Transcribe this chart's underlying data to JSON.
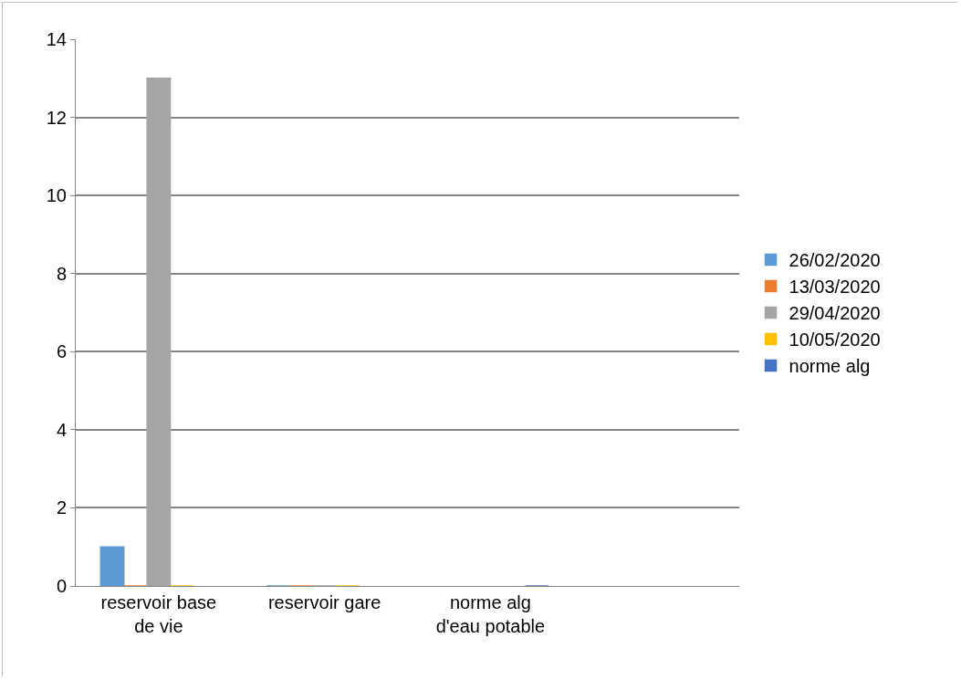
{
  "chart_data": {
    "type": "bar",
    "categories": [
      "reservoir base de vie",
      "reservoir gare",
      "norme alg d'eau potable",
      null
    ],
    "series": [
      {
        "name": "26/02/2020",
        "color": "#5b9bd5",
        "values": [
          1,
          0,
          null,
          null
        ]
      },
      {
        "name": "13/03/2020",
        "color": "#ed7d31",
        "values": [
          0,
          0,
          null,
          null
        ]
      },
      {
        "name": "29/04/2020",
        "color": "#a5a5a5",
        "values": [
          13,
          0,
          null,
          null
        ]
      },
      {
        "name": "10/05/2020",
        "color": "#ffc000",
        "values": [
          0,
          0,
          null,
          null
        ]
      },
      {
        "name": "norme alg",
        "color": "#4472c4",
        "values": [
          null,
          null,
          0,
          null
        ]
      }
    ],
    "ylim": [
      0,
      14
    ],
    "yticks": [
      0,
      2,
      4,
      6,
      8,
      10,
      12,
      14
    ],
    "grid": "y",
    "legend": "right"
  }
}
